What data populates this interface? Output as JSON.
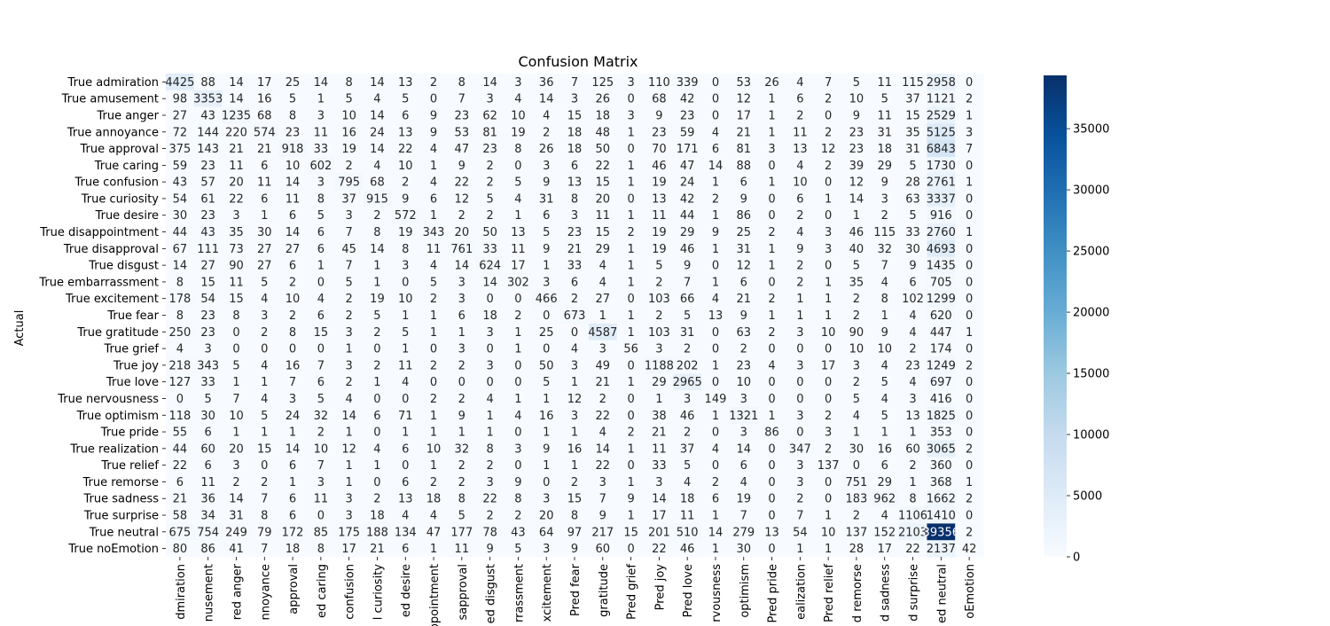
{
  "chart_data": {
    "type": "heatmap",
    "title": "Confusion Matrix",
    "ylabel": "Actual",
    "xlabel": "",
    "colormap": "Blues",
    "colors": {
      "low": "#f7fbff",
      "high": "#08306b"
    },
    "colorbar": {
      "min": 0,
      "max": 39356,
      "ticks": [
        0,
        5000,
        10000,
        15000,
        20000,
        25000,
        30000,
        35000
      ]
    },
    "x_tick_labels_visible": [
      "dmiration",
      "nusement",
      "red anger",
      "nnoyance",
      "approval",
      "ed caring",
      "confusion",
      "l curiosity",
      "ed desire",
      "ppointment",
      "sapproval",
      "ed disgust",
      "rrassment",
      "xcitement",
      "Pred fear",
      "gratitude",
      "Pred grief",
      "Pred joy",
      "Pred love",
      "rvousness",
      "optimism",
      "Pred pride",
      "ealization",
      "Pred relief",
      "d remorse",
      "d sadness",
      "d surprise",
      "ed neutral",
      "oEmotion"
    ],
    "y_tick_labels": [
      "True admiration",
      "True amusement",
      "True anger",
      "True annoyance",
      "True approval",
      "True caring",
      "True confusion",
      "True curiosity",
      "True desire",
      "True disappointment",
      "True disapproval",
      "True disgust",
      "True embarrassment",
      "True excitement",
      "True fear",
      "True gratitude",
      "True grief",
      "True joy",
      "True love",
      "True nervousness",
      "True optimism",
      "True pride",
      "True realization",
      "True relief",
      "True remorse",
      "True sadness",
      "True surprise",
      "True neutral",
      "True noEmotion"
    ],
    "matrix": [
      [
        4425,
        88,
        14,
        17,
        25,
        14,
        8,
        14,
        13,
        2,
        8,
        14,
        3,
        36,
        7,
        125,
        3,
        110,
        339,
        0,
        53,
        26,
        4,
        7,
        5,
        11,
        115,
        2958,
        0
      ],
      [
        98,
        3353,
        14,
        16,
        5,
        1,
        5,
        4,
        5,
        0,
        7,
        3,
        4,
        14,
        3,
        26,
        0,
        68,
        42,
        0,
        12,
        1,
        6,
        2,
        10,
        5,
        37,
        1121,
        2
      ],
      [
        27,
        43,
        1235,
        68,
        8,
        3,
        10,
        14,
        6,
        9,
        23,
        62,
        10,
        4,
        15,
        18,
        3,
        9,
        23,
        0,
        17,
        1,
        2,
        0,
        9,
        11,
        15,
        2529,
        1
      ],
      [
        72,
        144,
        220,
        574,
        23,
        11,
        16,
        24,
        13,
        9,
        53,
        81,
        19,
        2,
        18,
        48,
        1,
        23,
        59,
        4,
        21,
        1,
        11,
        2,
        23,
        31,
        35,
        5125,
        3
      ],
      [
        375,
        143,
        21,
        21,
        918,
        33,
        19,
        14,
        22,
        4,
        47,
        23,
        8,
        26,
        18,
        50,
        0,
        70,
        171,
        6,
        81,
        3,
        13,
        12,
        23,
        18,
        31,
        6843,
        7
      ],
      [
        59,
        23,
        11,
        6,
        10,
        602,
        2,
        4,
        10,
        1,
        9,
        2,
        0,
        3,
        6,
        22,
        1,
        46,
        47,
        14,
        88,
        0,
        4,
        2,
        39,
        29,
        5,
        1730,
        0
      ],
      [
        43,
        57,
        20,
        11,
        14,
        3,
        795,
        68,
        2,
        4,
        22,
        2,
        5,
        9,
        13,
        15,
        1,
        19,
        24,
        1,
        6,
        1,
        10,
        0,
        12,
        9,
        28,
        2761,
        1
      ],
      [
        54,
        61,
        22,
        6,
        11,
        8,
        37,
        915,
        9,
        6,
        12,
        5,
        4,
        31,
        8,
        20,
        0,
        13,
        42,
        2,
        9,
        0,
        6,
        1,
        14,
        3,
        63,
        3337,
        0
      ],
      [
        30,
        23,
        3,
        1,
        6,
        5,
        3,
        2,
        572,
        1,
        2,
        2,
        1,
        6,
        3,
        11,
        1,
        11,
        44,
        1,
        86,
        0,
        2,
        0,
        1,
        2,
        5,
        916,
        0
      ],
      [
        44,
        43,
        35,
        30,
        14,
        6,
        7,
        8,
        19,
        343,
        20,
        50,
        13,
        5,
        23,
        15,
        2,
        19,
        29,
        9,
        25,
        2,
        4,
        3,
        46,
        115,
        33,
        2760,
        1
      ],
      [
        67,
        111,
        73,
        27,
        27,
        6,
        45,
        14,
        8,
        11,
        761,
        33,
        11,
        9,
        21,
        29,
        1,
        19,
        46,
        1,
        31,
        1,
        9,
        3,
        40,
        32,
        30,
        4693,
        0
      ],
      [
        14,
        27,
        90,
        27,
        6,
        1,
        7,
        1,
        3,
        4,
        14,
        624,
        17,
        1,
        33,
        4,
        1,
        5,
        9,
        0,
        12,
        1,
        2,
        0,
        5,
        7,
        9,
        1435,
        0
      ],
      [
        8,
        15,
        11,
        5,
        2,
        0,
        5,
        1,
        0,
        5,
        3,
        14,
        302,
        3,
        6,
        4,
        1,
        2,
        7,
        1,
        6,
        0,
        2,
        1,
        35,
        4,
        6,
        705,
        0
      ],
      [
        178,
        54,
        15,
        4,
        10,
        4,
        2,
        19,
        10,
        2,
        3,
        0,
        0,
        466,
        2,
        27,
        0,
        103,
        66,
        4,
        21,
        2,
        1,
        1,
        2,
        8,
        102,
        1299,
        0
      ],
      [
        8,
        23,
        8,
        3,
        2,
        6,
        2,
        5,
        1,
        1,
        6,
        18,
        2,
        0,
        673,
        1,
        1,
        2,
        5,
        13,
        9,
        1,
        1,
        1,
        2,
        1,
        4,
        620,
        0
      ],
      [
        250,
        23,
        0,
        2,
        8,
        15,
        3,
        2,
        5,
        1,
        1,
        3,
        1,
        25,
        0,
        4587,
        1,
        103,
        31,
        0,
        63,
        2,
        3,
        10,
        90,
        9,
        4,
        447,
        1
      ],
      [
        4,
        3,
        0,
        0,
        0,
        0,
        1,
        0,
        1,
        0,
        3,
        0,
        1,
        0,
        4,
        3,
        56,
        3,
        2,
        0,
        2,
        0,
        0,
        0,
        10,
        10,
        2,
        174,
        0
      ],
      [
        218,
        343,
        5,
        4,
        16,
        7,
        3,
        2,
        11,
        2,
        2,
        3,
        0,
        50,
        3,
        49,
        0,
        1188,
        202,
        1,
        23,
        4,
        3,
        17,
        3,
        4,
        23,
        1249,
        2
      ],
      [
        127,
        33,
        1,
        1,
        7,
        6,
        2,
        1,
        4,
        0,
        0,
        0,
        0,
        5,
        1,
        21,
        1,
        29,
        2965,
        0,
        10,
        0,
        0,
        0,
        2,
        5,
        4,
        697,
        0
      ],
      [
        0,
        5,
        7,
        4,
        3,
        5,
        4,
        0,
        0,
        2,
        2,
        4,
        1,
        1,
        12,
        2,
        0,
        1,
        3,
        149,
        3,
        0,
        0,
        0,
        5,
        4,
        3,
        416,
        0
      ],
      [
        118,
        30,
        10,
        5,
        24,
        32,
        14,
        6,
        71,
        1,
        9,
        1,
        4,
        16,
        3,
        22,
        0,
        38,
        46,
        1,
        1321,
        1,
        3,
        2,
        4,
        5,
        13,
        1825,
        0
      ],
      [
        55,
        6,
        1,
        1,
        1,
        2,
        1,
        0,
        1,
        1,
        1,
        1,
        0,
        1,
        1,
        4,
        2,
        21,
        2,
        0,
        3,
        86,
        0,
        3,
        1,
        1,
        1,
        353,
        0
      ],
      [
        44,
        60,
        20,
        15,
        14,
        10,
        12,
        4,
        6,
        10,
        32,
        8,
        3,
        9,
        16,
        14,
        1,
        11,
        37,
        4,
        14,
        0,
        347,
        2,
        30,
        16,
        60,
        3065,
        2
      ],
      [
        22,
        6,
        3,
        0,
        6,
        7,
        1,
        1,
        0,
        1,
        2,
        2,
        0,
        1,
        1,
        22,
        0,
        33,
        5,
        0,
        6,
        0,
        3,
        137,
        0,
        6,
        2,
        360,
        0
      ],
      [
        6,
        11,
        2,
        2,
        1,
        3,
        1,
        0,
        6,
        2,
        2,
        3,
        9,
        0,
        2,
        3,
        1,
        3,
        4,
        2,
        4,
        0,
        3,
        0,
        751,
        29,
        1,
        368,
        1
      ],
      [
        21,
        36,
        14,
        7,
        6,
        11,
        3,
        2,
        13,
        18,
        8,
        22,
        8,
        3,
        15,
        7,
        9,
        14,
        18,
        6,
        19,
        0,
        2,
        0,
        183,
        962,
        8,
        1662,
        2
      ],
      [
        58,
        34,
        31,
        8,
        6,
        0,
        3,
        18,
        4,
        4,
        5,
        2,
        2,
        20,
        8,
        9,
        1,
        17,
        11,
        1,
        7,
        0,
        7,
        1,
        2,
        4,
        1106,
        1410,
        0
      ],
      [
        675,
        754,
        249,
        79,
        172,
        85,
        175,
        188,
        134,
        47,
        177,
        78,
        43,
        64,
        97,
        217,
        15,
        201,
        510,
        14,
        279,
        13,
        54,
        10,
        137,
        152,
        2103,
        39356,
        2
      ],
      [
        80,
        86,
        41,
        7,
        18,
        8,
        17,
        21,
        6,
        1,
        11,
        9,
        5,
        3,
        9,
        60,
        0,
        22,
        46,
        1,
        30,
        0,
        1,
        1,
        28,
        17,
        22,
        2137,
        42
      ]
    ]
  }
}
